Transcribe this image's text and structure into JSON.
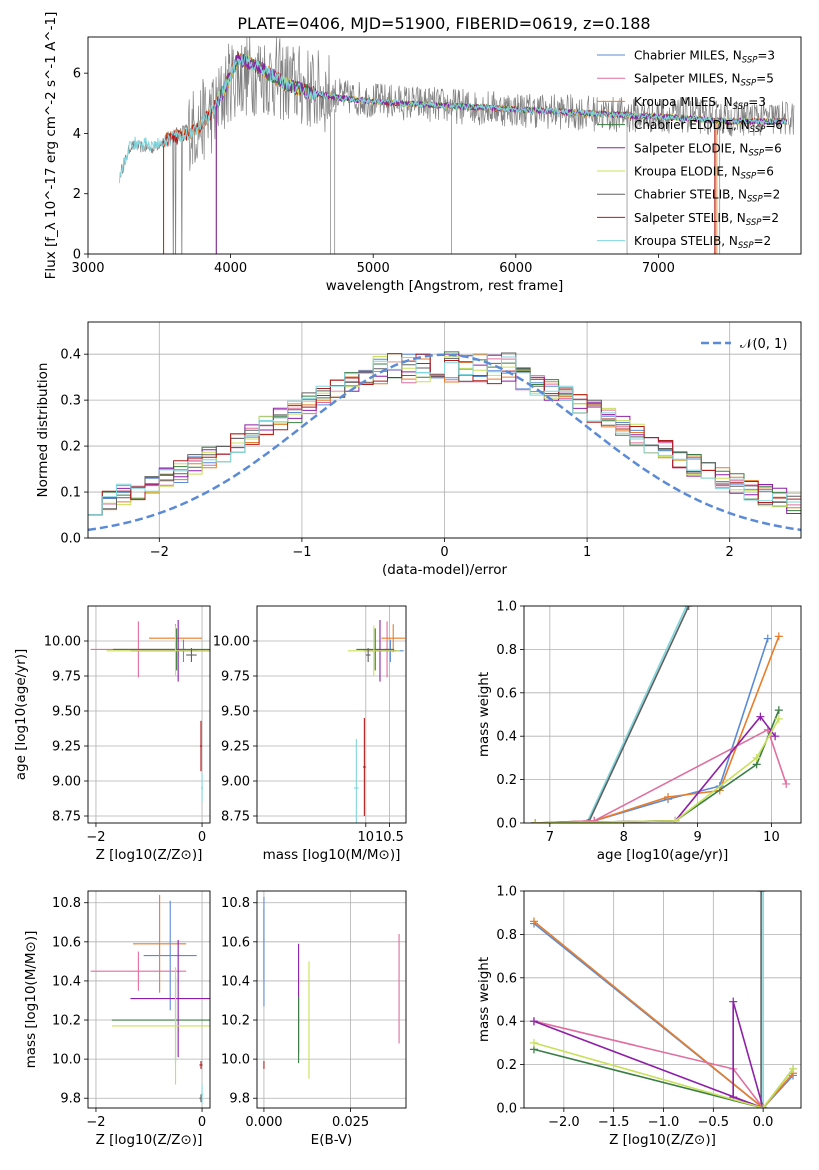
{
  "title": "PLATE=0406, MJD=51900, FIBERID=0619, z=0.188",
  "colors": {
    "Chabrier MILES": "#5b8bd6",
    "Salpeter MILES": "#e06fa0",
    "Kroupa MILES": "#e87d2a",
    "Chabrier ELODIE": "#3a7d44",
    "Salpeter ELODIE": "#8e1fa8",
    "Kroupa ELODIE": "#c8e05a",
    "Chabrier STELIB": "#606060",
    "Salpeter STELIB": "#b01c1c",
    "Kroupa STELIB": "#7fd6dd",
    "normal": "#5b8bd6"
  },
  "chart_data": [
    {
      "id": "spectrum",
      "type": "line",
      "xlabel": "wavelength [Angstrom, rest frame]",
      "ylabel": "Flux [f_λ 10^-17 erg cm^-2 s^-1 A^-1]",
      "xlim": [
        3000,
        8000
      ],
      "ylim": [
        0,
        7.2
      ],
      "xticks": [
        3000,
        4000,
        5000,
        6000,
        7000
      ],
      "yticks": [
        0,
        2,
        4,
        6
      ],
      "legend_position": "top-right",
      "legend": [
        {
          "label": "Chabrier MILES",
          "nssp": "3"
        },
        {
          "label": "Salpeter MILES",
          "nssp": "5"
        },
        {
          "label": "Kroupa MILES",
          "nssp": "3"
        },
        {
          "label": "Chabrier ELODIE",
          "nssp": "6"
        },
        {
          "label": "Salpeter ELODIE",
          "nssp": "6"
        },
        {
          "label": "Kroupa ELODIE",
          "nssp": "6"
        },
        {
          "label": "Chabrier STELIB",
          "nssp": "2"
        },
        {
          "label": "Salpeter STELIB",
          "nssp": "2"
        },
        {
          "label": "Kroupa STELIB",
          "nssp": "2"
        }
      ],
      "model_continuum": {
        "x": [
          3220,
          3300,
          3450,
          3550,
          3650,
          3750,
          3850,
          3950,
          4050,
          4200,
          4400,
          4600,
          4900,
          5200,
          5600,
          6000,
          6400,
          6800,
          7200,
          7500
        ],
        "y": [
          2.6,
          3.7,
          3.6,
          3.8,
          3.9,
          4.1,
          4.6,
          5.4,
          6.5,
          6.2,
          5.6,
          5.3,
          5.1,
          5.0,
          4.9,
          4.8,
          4.7,
          4.6,
          4.5,
          4.4
        ]
      },
      "data": {
        "x": [
          3230,
          3300,
          3450,
          3600,
          3750,
          3900,
          4000,
          4200,
          4400,
          4600,
          4800,
          5000,
          5300,
          5600,
          6000,
          6400,
          6800,
          7200,
          7500
        ],
        "y": [
          2.7,
          3.6,
          3.5,
          4.0,
          4.2,
          4.8,
          5.8,
          6.0,
          5.7,
          5.4,
          5.2,
          5.1,
          5.0,
          4.9,
          4.8,
          4.7,
          4.6,
          4.6,
          4.5
        ]
      }
    },
    {
      "id": "residuals",
      "type": "step",
      "xlabel": "(data-model)/error",
      "ylabel": "Normed distribution",
      "xlim": [
        -2.5,
        2.5
      ],
      "ylim": [
        0,
        0.47
      ],
      "xticks": [
        -2,
        -1,
        0,
        1,
        2
      ],
      "yticks": [
        0.0,
        0.1,
        0.2,
        0.3,
        0.4
      ],
      "legend_position": "top-right",
      "normal_label": "𝒩(0, 1)"
    },
    {
      "id": "age_vs_Z",
      "type": "errorbar",
      "xlabel": "Z [log10(Z/Z⊙)]",
      "ylabel": "age  [log10(age/yr)]",
      "xlim": [
        -2.15,
        0.15
      ],
      "ylim": [
        8.7,
        10.25
      ],
      "xticks": [
        -2,
        0
      ],
      "yticks": [
        8.75,
        9.0,
        9.25,
        9.5,
        9.75,
        10.0
      ],
      "points": [
        {
          "model": "Chabrier MILES",
          "x": -0.35,
          "xerr": 0.25,
          "y": 9.93,
          "yerr": 0.08
        },
        {
          "model": "Salpeter MILES",
          "x": -1.2,
          "xerr": 0.9,
          "y": 9.94,
          "yerr": 0.2
        },
        {
          "model": "Kroupa MILES",
          "x": -0.5,
          "xerr": 0.5,
          "y": 10.02,
          "yerr": 0.1
        },
        {
          "model": "Chabrier ELODIE",
          "x": -0.48,
          "xerr": 1.2,
          "y": 9.94,
          "yerr": 0.15
        },
        {
          "model": "Salpeter ELODIE",
          "x": -0.45,
          "xerr": 0.9,
          "y": 9.93,
          "yerr": 0.22
        },
        {
          "model": "Kroupa ELODIE",
          "x": -0.5,
          "xerr": 1.3,
          "y": 9.93,
          "yerr": 0.18
        },
        {
          "model": "Chabrier STELIB",
          "x": -0.2,
          "xerr": 0.1,
          "y": 9.9,
          "yerr": 0.05
        },
        {
          "model": "Salpeter STELIB",
          "x": -0.02,
          "xerr": 0.02,
          "y": 9.25,
          "yerr": 0.18
        },
        {
          "model": "Kroupa STELIB",
          "x": 0.0,
          "xerr": 0.02,
          "y": 8.95,
          "yerr": 0.1
        }
      ]
    },
    {
      "id": "age_vs_mass",
      "type": "errorbar",
      "xlabel": "mass [log10(M/M⊙)]",
      "ylabel": "",
      "xlim": [
        7.7,
        10.85
      ],
      "ylim": [
        8.7,
        10.25
      ],
      "xticks": [
        10.0,
        10.5
      ],
      "yticks": [
        8.75,
        9.0,
        9.25,
        9.5,
        9.75,
        10.0
      ],
      "points": [
        {
          "model": "Chabrier MILES",
          "x": 10.52,
          "xerr": 0.28,
          "y": 9.93,
          "yerr": 0.08
        },
        {
          "model": "Salpeter MILES",
          "x": 10.45,
          "xerr": 0.05,
          "y": 9.94,
          "yerr": 0.2
        },
        {
          "model": "Kroupa MILES",
          "x": 10.58,
          "xerr": 0.25,
          "y": 10.02,
          "yerr": 0.1
        },
        {
          "model": "Chabrier ELODIE",
          "x": 10.2,
          "xerr": 0.4,
          "y": 9.94,
          "yerr": 0.15
        },
        {
          "model": "Salpeter ELODIE",
          "x": 10.3,
          "xerr": 0.35,
          "y": 9.93,
          "yerr": 0.22
        },
        {
          "model": "Kroupa ELODIE",
          "x": 10.17,
          "xerr": 0.55,
          "y": 9.93,
          "yerr": 0.18
        },
        {
          "model": "Chabrier STELIB",
          "x": 10.05,
          "xerr": 0.05,
          "y": 9.9,
          "yerr": 0.05
        },
        {
          "model": "Salpeter STELIB",
          "x": 9.97,
          "xerr": 0.03,
          "y": 9.1,
          "yerr": 0.35
        },
        {
          "model": "Kroupa STELIB",
          "x": 9.8,
          "xerr": 0.05,
          "y": 8.95,
          "yerr": 0.35
        }
      ]
    },
    {
      "id": "massweight_vs_age",
      "type": "line",
      "xlabel": "age  [log10(age/yr)]",
      "ylabel": "mass weight",
      "xlim": [
        6.65,
        10.4
      ],
      "ylim": [
        0,
        1.0
      ],
      "xticks": [
        7,
        8,
        9,
        10
      ],
      "yticks": [
        0.0,
        0.2,
        0.4,
        0.6,
        0.8,
        1.0
      ],
      "series": [
        {
          "model": "Kroupa STELIB",
          "x": [
            7.5,
            8.85
          ],
          "y": [
            0.0,
            1.0
          ]
        },
        {
          "model": "Chabrier STELIB",
          "x": [
            7.52,
            8.88
          ],
          "y": [
            0.0,
            1.0
          ]
        },
        {
          "model": "Chabrier MILES",
          "x": [
            6.8,
            7.6,
            8.6,
            9.3,
            9.95
          ],
          "y": [
            0.0,
            0.01,
            0.11,
            0.17,
            0.85
          ]
        },
        {
          "model": "Kroupa MILES",
          "x": [
            6.8,
            7.6,
            8.6,
            9.3,
            10.1
          ],
          "y": [
            0.0,
            0.01,
            0.12,
            0.15,
            0.86
          ]
        },
        {
          "model": "Salpeter MILES",
          "x": [
            6.8,
            7.6,
            9.95,
            10.2
          ],
          "y": [
            0.0,
            0.01,
            0.43,
            0.18
          ]
        },
        {
          "model": "Chabrier ELODIE",
          "x": [
            6.8,
            8.7,
            9.8,
            10.1
          ],
          "y": [
            0.0,
            0.01,
            0.27,
            0.52
          ]
        },
        {
          "model": "Salpeter ELODIE",
          "x": [
            6.8,
            8.7,
            9.85,
            10.05
          ],
          "y": [
            0.0,
            0.01,
            0.49,
            0.4
          ]
        },
        {
          "model": "Kroupa ELODIE",
          "x": [
            6.8,
            8.7,
            9.8,
            10.1
          ],
          "y": [
            0.0,
            0.01,
            0.3,
            0.48
          ]
        }
      ]
    },
    {
      "id": "mass_vs_Z",
      "type": "errorbar",
      "xlabel": "Z [log10(Z/Z⊙)]",
      "ylabel": "mass [log10(M/M⊙)]",
      "xlim": [
        -2.15,
        0.15
      ],
      "ylim": [
        9.75,
        10.86
      ],
      "xticks": [
        -2,
        0
      ],
      "yticks": [
        9.8,
        10.0,
        10.2,
        10.4,
        10.6,
        10.8
      ],
      "points": [
        {
          "model": "Chabrier MILES",
          "x": -0.6,
          "xerr": 0.5,
          "y": 10.53,
          "yerr": 0.28
        },
        {
          "model": "Salpeter MILES",
          "x": -1.2,
          "xerr": 0.9,
          "y": 10.45,
          "yerr": 0.1
        },
        {
          "model": "Kroupa MILES",
          "x": -0.8,
          "xerr": 0.5,
          "y": 10.59,
          "yerr": 0.25
        },
        {
          "model": "Chabrier ELODIE",
          "x": -0.5,
          "xerr": 1.2,
          "y": 10.2,
          "yerr": 0.22
        },
        {
          "model": "Salpeter ELODIE",
          "x": -0.45,
          "xerr": 0.9,
          "y": 10.31,
          "yerr": 0.3
        },
        {
          "model": "Kroupa ELODIE",
          "x": -0.5,
          "xerr": 1.2,
          "y": 10.17,
          "yerr": 0.3
        },
        {
          "model": "Chabrier STELIB",
          "x": -0.02,
          "xerr": 0.03,
          "y": 9.8,
          "yerr": 0.02
        },
        {
          "model": "Salpeter STELIB",
          "x": -0.02,
          "xerr": 0.03,
          "y": 9.97,
          "yerr": 0.02
        },
        {
          "model": "Kroupa STELIB",
          "x": 0.0,
          "xerr": 0.02,
          "y": 9.82,
          "yerr": 0.05
        }
      ]
    },
    {
      "id": "mass_vs_ebv",
      "type": "errorbar",
      "xlabel": "E(B-V)",
      "ylabel": "",
      "xlim": [
        -0.002,
        0.041
      ],
      "ylim": [
        9.75,
        10.86
      ],
      "xticks": [
        0.0,
        0.025
      ],
      "xtick_labels": [
        "0.000",
        "0.025"
      ],
      "yticks": [
        9.8,
        10.0,
        10.2,
        10.4,
        10.6,
        10.8
      ],
      "points": [
        {
          "model": "Kroupa MILES",
          "x": 0.0,
          "xerr": 0,
          "y": 10.59,
          "yerr": 0.18
        },
        {
          "model": "Chabrier MILES",
          "x": 0.0,
          "xerr": 0,
          "y": 10.55,
          "yerr": 0.28
        },
        {
          "model": "Salpeter STELIB",
          "x": 0.0,
          "xerr": 0,
          "y": 9.97,
          "yerr": 0.02
        },
        {
          "model": "Salpeter ELODIE",
          "x": 0.01,
          "xerr": 0,
          "y": 10.31,
          "yerr": 0.28
        },
        {
          "model": "Chabrier ELODIE",
          "x": 0.01,
          "xerr": 0,
          "y": 10.15,
          "yerr": 0.17
        },
        {
          "model": "Kroupa ELODIE",
          "x": 0.013,
          "xerr": 0,
          "y": 10.2,
          "yerr": 0.3
        },
        {
          "model": "Salpeter MILES",
          "x": 0.039,
          "xerr": 0,
          "y": 10.36,
          "yerr": 0.28
        }
      ]
    },
    {
      "id": "massweight_vs_Z",
      "type": "line",
      "xlabel": "Z [log10(Z/Z⊙)]",
      "ylabel": "mass weight",
      "xlim": [
        -2.4,
        0.38
      ],
      "ylim": [
        0,
        1.0
      ],
      "xticks": [
        -2.0,
        -1.5,
        -1.0,
        -0.5,
        0.0
      ],
      "xtick_labels": [
        "−2.0",
        "−1.5",
        "−1.0",
        "−0.5",
        "0.0"
      ],
      "yticks": [
        0.0,
        0.2,
        0.4,
        0.6,
        0.8,
        1.0
      ],
      "series": [
        {
          "model": "Kroupa STELIB",
          "x": [
            0.0,
            0.0
          ],
          "y": [
            0.0,
            1.0
          ]
        },
        {
          "model": "Chabrier STELIB",
          "x": [
            -0.02,
            -0.02
          ],
          "y": [
            0.0,
            1.0
          ]
        },
        {
          "model": "Chabrier MILES",
          "x": [
            -2.3,
            0.0,
            0.3
          ],
          "y": [
            0.85,
            0.0,
            0.15
          ]
        },
        {
          "model": "Kroupa MILES",
          "x": [
            -2.3,
            0.0,
            0.3
          ],
          "y": [
            0.86,
            0.0,
            0.16
          ]
        },
        {
          "model": "Salpeter MILES",
          "x": [
            -2.3,
            -0.3,
            0.0
          ],
          "y": [
            0.4,
            0.18,
            0.0
          ]
        },
        {
          "model": "Salpeter ELODIE",
          "x": [
            -2.3,
            0.0,
            -0.3,
            -0.3,
            0.0
          ],
          "y": [
            0.4,
            0.0,
            0.05,
            0.49,
            0.0
          ]
        },
        {
          "model": "Chabrier ELODIE",
          "x": [
            -2.3,
            0.0,
            0.3
          ],
          "y": [
            0.27,
            0.0,
            0.18
          ]
        },
        {
          "model": "Kroupa ELODIE",
          "x": [
            -2.3,
            0.0,
            0.3
          ],
          "y": [
            0.3,
            0.0,
            0.18
          ]
        }
      ]
    }
  ]
}
